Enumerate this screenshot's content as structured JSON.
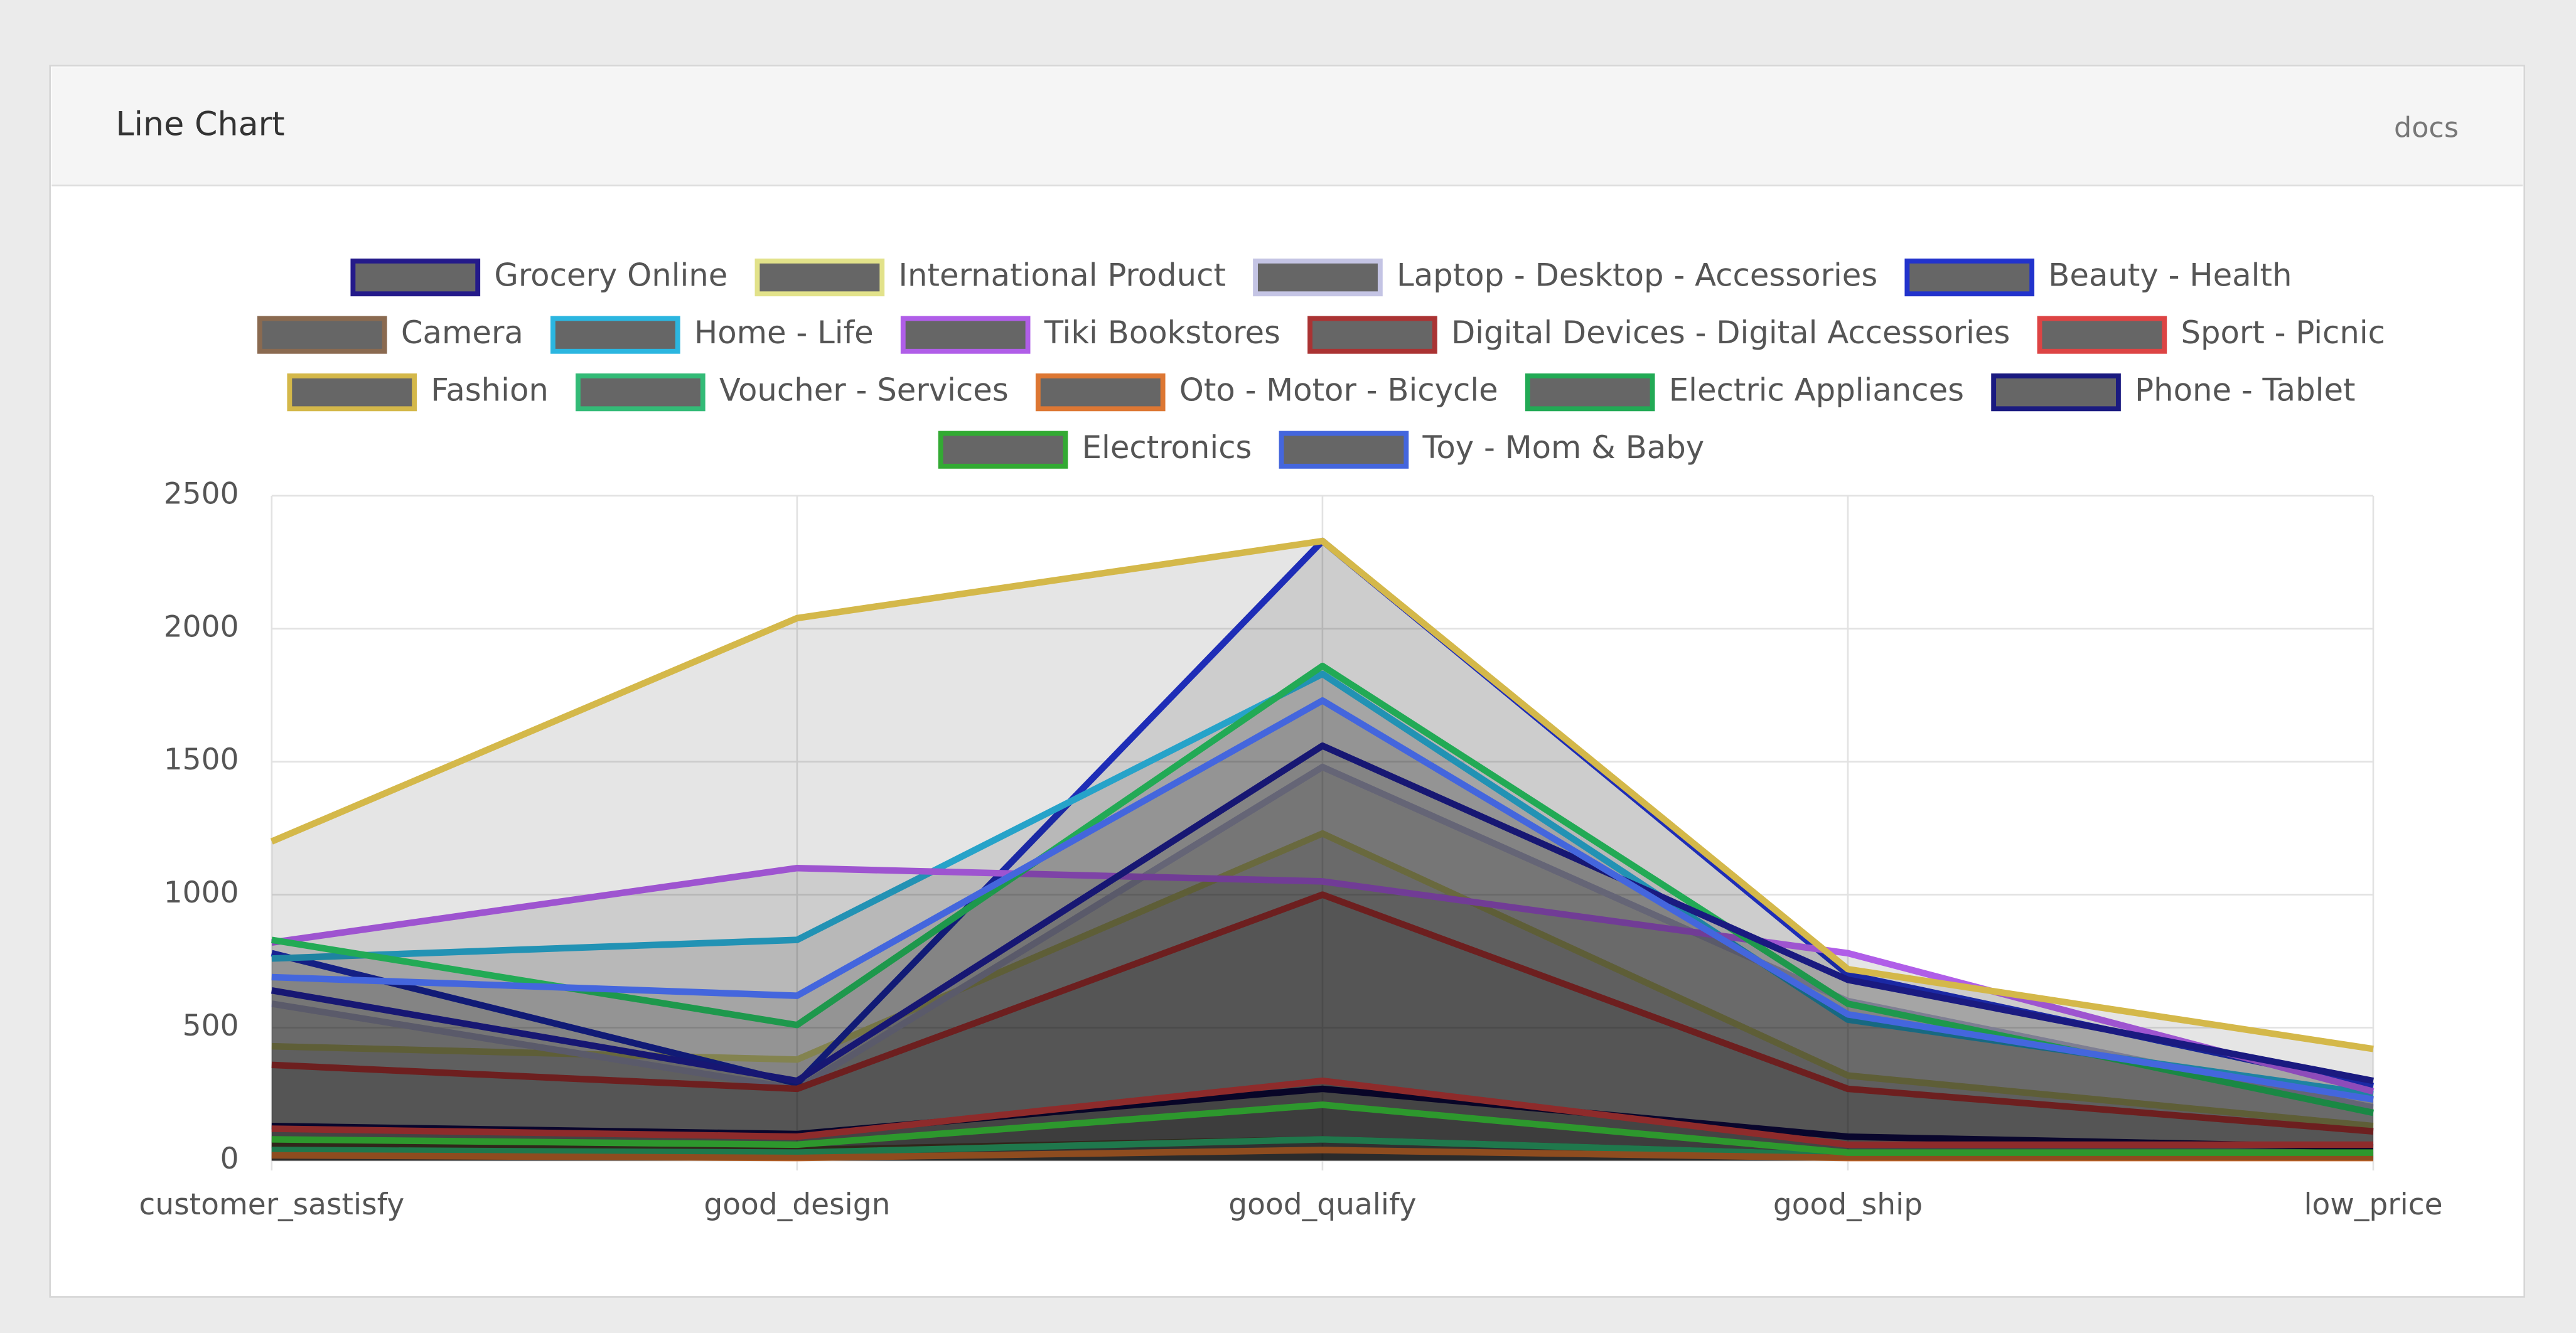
{
  "header": {
    "title": "Line Chart",
    "link": "docs"
  },
  "chart_data": {
    "type": "line",
    "categories": [
      "customer_sastisfy",
      "good_design",
      "good_qualify",
      "good_ship",
      "low_price"
    ],
    "ylim": [
      0,
      2500
    ],
    "yticks": [
      0,
      500,
      1000,
      1500,
      2000,
      2500
    ],
    "grid": true,
    "fill": true,
    "legend": "top",
    "series": [
      {
        "name": "Grocery Online",
        "color": "#241a8a",
        "values": [
          130,
          100,
          270,
          90,
          50
        ]
      },
      {
        "name": "International Product",
        "color": "#e2e28a",
        "values": [
          430,
          380,
          1230,
          320,
          130
        ]
      },
      {
        "name": "Laptop - Desktop - Accessories",
        "color": "#c4c4e4",
        "values": [
          590,
          270,
          1480,
          600,
          200
        ]
      },
      {
        "name": "Beauty - Health",
        "color": "#2233cc",
        "values": [
          780,
          290,
          2330,
          700,
          280
        ]
      },
      {
        "name": "Camera",
        "color": "#8a6a50",
        "values": [
          60,
          40,
          80,
          20,
          20
        ]
      },
      {
        "name": "Home - Life",
        "color": "#2bb6e0",
        "values": [
          760,
          830,
          1830,
          530,
          250
        ]
      },
      {
        "name": "Tiki Bookstores",
        "color": "#b05ee8",
        "values": [
          820,
          1100,
          1050,
          780,
          260
        ]
      },
      {
        "name": "Digital Devices - Digital Accessories",
        "color": "#aa3333",
        "values": [
          360,
          270,
          1000,
          270,
          110
        ]
      },
      {
        "name": "Sport - Picnic",
        "color": "#dd4444",
        "values": [
          120,
          90,
          300,
          60,
          60
        ]
      },
      {
        "name": "Fashion",
        "color": "#d4b84a",
        "values": [
          1200,
          2040,
          2330,
          720,
          420
        ]
      },
      {
        "name": "Voucher - Services",
        "color": "#33bb77",
        "values": [
          40,
          30,
          80,
          20,
          20
        ]
      },
      {
        "name": "Oto - Motor - Bicycle",
        "color": "#dd7733",
        "values": [
          20,
          10,
          40,
          10,
          10
        ]
      },
      {
        "name": "Electric Appliances",
        "color": "#22aa55",
        "values": [
          830,
          510,
          1860,
          590,
          180
        ]
      },
      {
        "name": "Phone - Tablet",
        "color": "#1a1a80",
        "values": [
          640,
          300,
          1560,
          680,
          300
        ]
      },
      {
        "name": "Electronics",
        "color": "#33aa33",
        "values": [
          80,
          60,
          210,
          30,
          30
        ]
      },
      {
        "name": "Toy - Mom & Baby",
        "color": "#4466dd",
        "values": [
          690,
          620,
          1730,
          550,
          230
        ]
      }
    ]
  }
}
